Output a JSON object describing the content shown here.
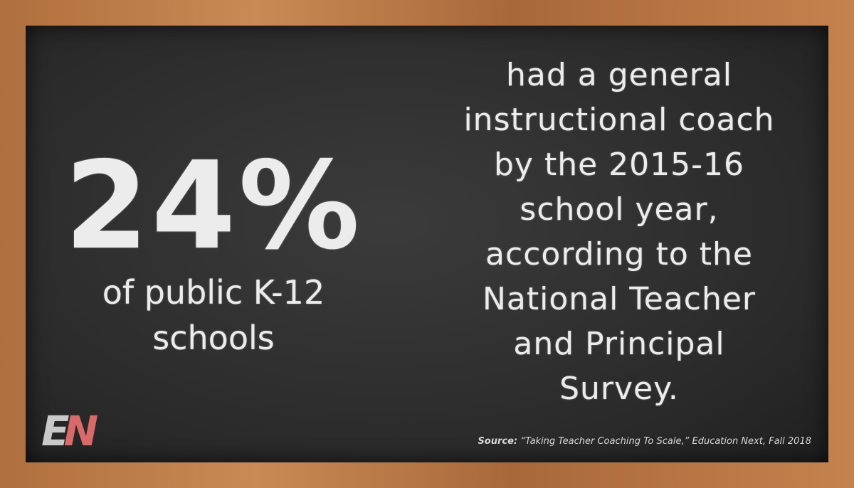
{
  "stat": {
    "value": "24%",
    "caption_lines": [
      "of public K-12",
      "schools"
    ]
  },
  "statement": {
    "lines": [
      "had a general",
      "instructional coach",
      "by the 2015-16",
      "school year,",
      "according to the",
      "National Teacher",
      "and Principal",
      "Survey."
    ]
  },
  "source": {
    "label": "Source:",
    "text": "“Taking Teacher Coaching To Scale,” Education Next, Fall 2018"
  },
  "logo": {
    "letters": [
      "E",
      "N"
    ]
  }
}
